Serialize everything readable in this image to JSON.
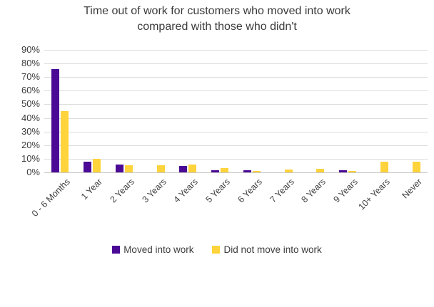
{
  "title_lines": [
    "Time out of work for customers who moved into work",
    "compared with those who didn't"
  ],
  "chart_data": {
    "type": "bar",
    "title": "Time out of work for customers who moved into work compared with those who didn't",
    "categories": [
      "0 - 6 Months",
      "1 Year",
      "2 Years",
      "3 Years",
      "4 Years",
      "5 Years",
      "6 Years",
      "7 Years",
      "8 Years",
      "9 Years",
      "10+ Years",
      "Never"
    ],
    "series": [
      {
        "name": "Moved into work",
        "color": "#4a0a96",
        "values": [
          76,
          8,
          6,
          0,
          4.5,
          1.5,
          1.5,
          0,
          0,
          1.5,
          0,
          0
        ]
      },
      {
        "name": "Did not move into work",
        "color": "#ffd33b",
        "values": [
          45,
          10,
          5,
          5,
          5.5,
          3,
          1,
          2,
          2.5,
          1,
          8,
          8
        ]
      }
    ],
    "xlabel": "",
    "ylabel": "",
    "ylim": [
      0,
      90
    ],
    "yticks": [
      0,
      10,
      20,
      30,
      40,
      50,
      60,
      70,
      80,
      90
    ],
    "ytick_labels": [
      "0%",
      "10%",
      "20%",
      "30%",
      "40%",
      "50%",
      "60%",
      "70%",
      "80%",
      "90%"
    ],
    "grid": true,
    "legend_position": "bottom",
    "colors": {
      "gridline": "#dcdcdc",
      "axis_line": "#c6c6c6",
      "text": "#3d3d3d",
      "background": "#ffffff"
    }
  }
}
